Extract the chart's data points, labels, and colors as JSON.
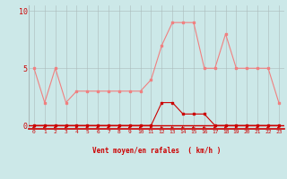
{
  "hours": [
    0,
    1,
    2,
    3,
    4,
    5,
    6,
    7,
    8,
    9,
    10,
    11,
    12,
    13,
    14,
    15,
    16,
    17,
    18,
    19,
    20,
    21,
    22,
    23
  ],
  "gusts": [
    5,
    2,
    5,
    2,
    3,
    3,
    3,
    3,
    3,
    3,
    3,
    4,
    7,
    9,
    9,
    9,
    5,
    5,
    8,
    5,
    5,
    5,
    5,
    2
  ],
  "wind_mean": [
    0,
    0,
    0,
    0,
    0,
    0,
    0,
    0,
    0,
    0,
    0,
    0,
    2,
    2,
    1,
    1,
    1,
    0,
    0,
    0,
    0,
    0,
    0,
    0
  ],
  "gust_color": "#f08080",
  "mean_color": "#cc0000",
  "bg_color": "#cce8e8",
  "grid_color": "#aabbbb",
  "xlabel": "Vent moyen/en rafales  ( km/h )",
  "xlabel_color": "#cc0000",
  "tick_color": "#cc0000",
  "ylim": [
    0,
    10
  ],
  "yticks": [
    0,
    5,
    10
  ],
  "xlim_min": 0,
  "xlim_max": 23
}
